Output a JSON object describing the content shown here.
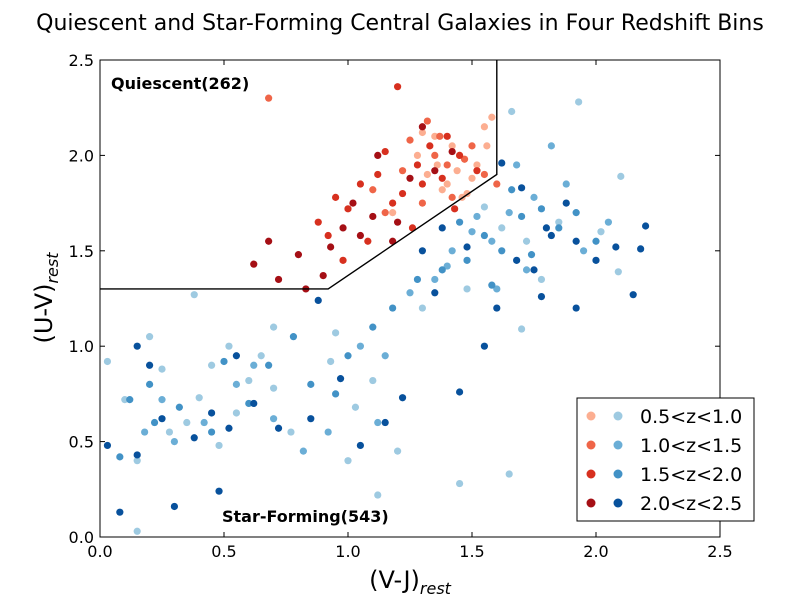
{
  "chart_data": {
    "type": "scatter",
    "title": "Quiescent and Star-Forming Central Galaxies in Four Redshift Bins",
    "xlabel": "(V-J)",
    "xlabel_sub": "rest",
    "ylabel": "(U-V)",
    "ylabel_sub": "rest",
    "xlim": [
      0.0,
      2.5
    ],
    "ylim": [
      0.0,
      2.5
    ],
    "xticks": [
      "0.0",
      "0.5",
      "1.0",
      "1.5",
      "2.0",
      "2.5"
    ],
    "yticks": [
      "0.0",
      "0.5",
      "1.0",
      "1.5",
      "2.0",
      "2.5"
    ],
    "grid": false,
    "legend_position": "lower-right",
    "regions": [
      {
        "label": "Quiescent(262)"
      },
      {
        "label": "Star-Forming(543)"
      }
    ],
    "boundary": [
      [
        0.0,
        1.3
      ],
      [
        0.92,
        1.3
      ],
      [
        1.6,
        1.9
      ],
      [
        1.6,
        2.5
      ]
    ],
    "series": [
      {
        "name": "0.5<z<1.0",
        "color_quiescent": "#fcae91",
        "color_starforming": "#9ecae1",
        "quiescent": [
          [
            1.18,
            1.7
          ],
          [
            1.32,
            1.9
          ],
          [
            1.36,
            1.95
          ],
          [
            1.4,
            1.85
          ],
          [
            1.45,
            2.0
          ],
          [
            1.42,
            2.05
          ],
          [
            1.48,
            1.8
          ],
          [
            1.35,
            2.1
          ],
          [
            1.52,
            1.95
          ],
          [
            1.55,
            2.15
          ],
          [
            1.58,
            2.2
          ],
          [
            1.28,
            2.0
          ],
          [
            1.46,
            1.78
          ],
          [
            1.5,
            1.88
          ],
          [
            1.38,
            1.82
          ],
          [
            1.3,
            2.12
          ],
          [
            1.56,
            2.05
          ],
          [
            1.44,
            1.92
          ]
        ],
        "starforming": [
          [
            0.03,
            0.92
          ],
          [
            0.15,
            0.03
          ],
          [
            0.15,
            0.4
          ],
          [
            0.2,
            1.05
          ],
          [
            0.25,
            0.88
          ],
          [
            0.35,
            0.6
          ],
          [
            0.4,
            0.73
          ],
          [
            0.45,
            0.9
          ],
          [
            0.48,
            0.48
          ],
          [
            0.55,
            0.65
          ],
          [
            0.65,
            0.95
          ],
          [
            0.7,
            0.78
          ],
          [
            0.77,
            0.55
          ],
          [
            0.93,
            0.92
          ],
          [
            1.03,
            0.68
          ],
          [
            1.1,
            0.82
          ],
          [
            1.12,
            0.22
          ],
          [
            1.2,
            0.45
          ],
          [
            1.45,
            0.28
          ],
          [
            1.65,
            0.33
          ],
          [
            1.93,
            2.28
          ],
          [
            2.1,
            1.89
          ],
          [
            2.09,
            1.39
          ],
          [
            1.66,
            2.23
          ],
          [
            1.7,
            1.09
          ],
          [
            0.38,
            1.27
          ],
          [
            0.52,
            1.0
          ],
          [
            0.7,
            1.1
          ],
          [
            0.95,
            1.07
          ],
          [
            1.3,
            1.2
          ],
          [
            1.48,
            1.3
          ],
          [
            1.62,
            1.62
          ],
          [
            1.55,
            1.73
          ],
          [
            1.72,
            1.55
          ],
          [
            1.85,
            1.65
          ],
          [
            2.02,
            1.6
          ],
          [
            0.1,
            0.72
          ],
          [
            0.28,
            0.55
          ],
          [
            0.6,
            0.82
          ],
          [
            1.0,
            0.4
          ],
          [
            1.78,
            1.35
          ]
        ]
      },
      {
        "name": "1.0<z<1.5",
        "color_quiescent": "#ef6548",
        "color_starforming": "#6baed6",
        "quiescent": [
          [
            0.68,
            2.3
          ],
          [
            1.1,
            1.82
          ],
          [
            1.22,
            1.92
          ],
          [
            1.3,
            1.75
          ],
          [
            1.35,
            2.0
          ],
          [
            1.4,
            1.95
          ],
          [
            1.5,
            2.05
          ],
          [
            1.55,
            1.9
          ],
          [
            1.42,
            1.78
          ],
          [
            1.6,
            1.85
          ],
          [
            1.32,
            2.18
          ],
          [
            1.25,
            2.08
          ],
          [
            1.15,
            1.7
          ],
          [
            1.47,
            1.98
          ],
          [
            1.37,
            2.1
          ]
        ],
        "starforming": [
          [
            0.18,
            0.55
          ],
          [
            0.3,
            0.5
          ],
          [
            0.42,
            0.6
          ],
          [
            0.55,
            0.8
          ],
          [
            0.7,
            0.62
          ],
          [
            0.82,
            0.45
          ],
          [
            0.92,
            0.55
          ],
          [
            1.05,
            1.0
          ],
          [
            1.15,
            0.95
          ],
          [
            1.25,
            1.28
          ],
          [
            1.35,
            1.35
          ],
          [
            1.42,
            1.5
          ],
          [
            1.5,
            1.6
          ],
          [
            1.58,
            1.55
          ],
          [
            1.65,
            1.7
          ],
          [
            1.75,
            1.78
          ],
          [
            1.82,
            2.05
          ],
          [
            1.88,
            1.85
          ],
          [
            1.95,
            1.5
          ],
          [
            2.05,
            1.65
          ],
          [
            1.6,
            1.3
          ],
          [
            1.72,
            1.4
          ],
          [
            1.52,
            1.68
          ],
          [
            1.4,
            1.42
          ],
          [
            0.25,
            0.72
          ],
          [
            0.62,
            0.9
          ],
          [
            1.12,
            0.6
          ],
          [
            1.68,
            1.95
          ]
        ]
      },
      {
        "name": "1.5<z<2.0",
        "color_quiescent": "#d7301f",
        "color_starforming": "#4292c6",
        "quiescent": [
          [
            0.88,
            1.65
          ],
          [
            0.95,
            1.78
          ],
          [
            1.0,
            1.72
          ],
          [
            1.05,
            1.85
          ],
          [
            1.12,
            1.9
          ],
          [
            1.2,
            2.36
          ],
          [
            1.18,
            1.75
          ],
          [
            1.28,
            1.95
          ],
          [
            1.33,
            2.05
          ],
          [
            1.4,
            2.1
          ],
          [
            1.45,
            2.0
          ],
          [
            1.52,
            1.92
          ],
          [
            1.26,
            1.62
          ],
          [
            1.08,
            1.55
          ],
          [
            0.98,
            1.45
          ],
          [
            1.22,
            1.8
          ],
          [
            1.38,
            1.88
          ],
          [
            1.15,
            2.02
          ],
          [
            0.92,
            1.58
          ],
          [
            1.3,
            1.85
          ],
          [
            1.43,
            1.72
          ]
        ],
        "starforming": [
          [
            0.08,
            0.42
          ],
          [
            0.12,
            0.72
          ],
          [
            0.2,
            0.8
          ],
          [
            0.22,
            0.6
          ],
          [
            0.32,
            0.68
          ],
          [
            0.45,
            0.55
          ],
          [
            0.5,
            0.92
          ],
          [
            0.6,
            0.7
          ],
          [
            0.68,
            0.9
          ],
          [
            0.78,
            1.05
          ],
          [
            0.85,
            0.8
          ],
          [
            0.95,
            0.75
          ],
          [
            1.0,
            0.95
          ],
          [
            1.1,
            1.1
          ],
          [
            1.18,
            1.2
          ],
          [
            1.28,
            1.35
          ],
          [
            1.38,
            1.4
          ],
          [
            1.48,
            1.45
          ],
          [
            1.55,
            1.58
          ],
          [
            1.62,
            1.5
          ],
          [
            1.7,
            1.68
          ],
          [
            1.78,
            1.72
          ],
          [
            1.85,
            1.62
          ],
          [
            1.92,
            1.7
          ],
          [
            2.0,
            1.55
          ],
          [
            1.66,
            1.82
          ],
          [
            1.74,
            1.48
          ],
          [
            1.58,
            1.32
          ],
          [
            1.45,
            1.65
          ]
        ]
      },
      {
        "name": "2.0<z<2.5",
        "color_quiescent": "#a50f15",
        "color_starforming": "#08519c",
        "quiescent": [
          [
            0.62,
            1.43
          ],
          [
            0.68,
            1.55
          ],
          [
            0.72,
            1.35
          ],
          [
            0.8,
            1.48
          ],
          [
            0.83,
            1.3
          ],
          [
            0.9,
            1.37
          ],
          [
            0.98,
            1.62
          ],
          [
            1.05,
            1.58
          ],
          [
            1.1,
            1.68
          ],
          [
            1.2,
            1.65
          ],
          [
            1.25,
            1.88
          ],
          [
            1.35,
            1.92
          ],
          [
            1.42,
            2.02
          ],
          [
            1.12,
            2.0
          ],
          [
            1.02,
            1.75
          ],
          [
            0.93,
            1.52
          ],
          [
            1.18,
            1.55
          ],
          [
            1.3,
            2.15
          ]
        ],
        "starforming": [
          [
            0.03,
            0.48
          ],
          [
            0.08,
            0.13
          ],
          [
            0.15,
            0.43
          ],
          [
            0.15,
            1.0
          ],
          [
            0.25,
            0.62
          ],
          [
            0.3,
            0.16
          ],
          [
            0.38,
            0.52
          ],
          [
            0.48,
            0.24
          ],
          [
            0.52,
            0.57
          ],
          [
            0.62,
            0.7
          ],
          [
            0.72,
            0.57
          ],
          [
            0.85,
            0.62
          ],
          [
            0.88,
            1.24
          ],
          [
            0.97,
            0.83
          ],
          [
            1.05,
            0.48
          ],
          [
            1.15,
            0.6
          ],
          [
            1.22,
            0.73
          ],
          [
            1.3,
            1.5
          ],
          [
            1.38,
            1.62
          ],
          [
            1.45,
            0.76
          ],
          [
            1.55,
            1.0
          ],
          [
            1.6,
            1.2
          ],
          [
            1.68,
            1.45
          ],
          [
            1.75,
            1.4
          ],
          [
            1.8,
            1.62
          ],
          [
            1.88,
            1.75
          ],
          [
            1.92,
            1.55
          ],
          [
            2.0,
            1.45
          ],
          [
            2.08,
            1.52
          ],
          [
            2.15,
            1.27
          ],
          [
            2.2,
            1.63
          ],
          [
            1.7,
            1.83
          ],
          [
            1.82,
            1.58
          ],
          [
            1.62,
            1.96
          ],
          [
            1.48,
            1.52
          ],
          [
            1.35,
            1.28
          ],
          [
            1.92,
            1.2
          ],
          [
            1.78,
            1.26
          ],
          [
            2.18,
            1.51
          ],
          [
            0.2,
            0.9
          ],
          [
            0.45,
            0.65
          ],
          [
            0.55,
            0.95
          ]
        ]
      }
    ]
  }
}
